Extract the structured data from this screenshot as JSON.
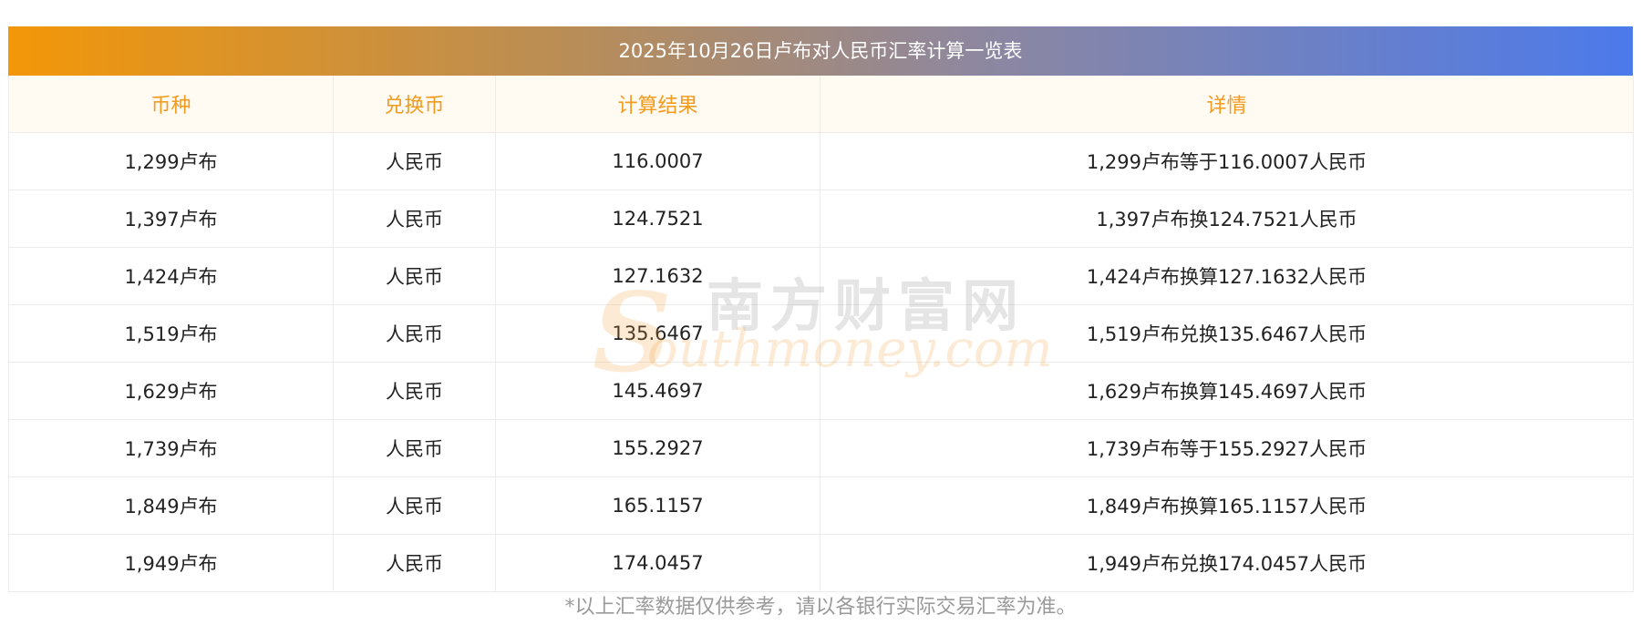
{
  "title": "2025年10月26日卢布对人民币汇率计算一览表",
  "headers": [
    "币种",
    "兑换币",
    "计算结果",
    "详情"
  ],
  "rows": [
    {
      "currency": "1,299卢布",
      "target": "人民币",
      "result": "116.0007",
      "detail": "1,299卢布等于116.0007人民币"
    },
    {
      "currency": "1,397卢布",
      "target": "人民币",
      "result": "124.7521",
      "detail": "1,397卢布换124.7521人民币"
    },
    {
      "currency": "1,424卢布",
      "target": "人民币",
      "result": "127.1632",
      "detail": "1,424卢布换算127.1632人民币"
    },
    {
      "currency": "1,519卢布",
      "target": "人民币",
      "result": "135.6467",
      "detail": "1,519卢布兑换135.6467人民币"
    },
    {
      "currency": "1,629卢布",
      "target": "人民币",
      "result": "145.4697",
      "detail": "1,629卢布换算145.4697人民币"
    },
    {
      "currency": "1,739卢布",
      "target": "人民币",
      "result": "155.2927",
      "detail": "1,739卢布等于155.2927人民币"
    },
    {
      "currency": "1,849卢布",
      "target": "人民币",
      "result": "165.1157",
      "detail": "1,849卢布换算165.1157人民币"
    },
    {
      "currency": "1,949卢布",
      "target": "人民币",
      "result": "174.0457",
      "detail": "1,949卢布兑换174.0457人民币"
    }
  ],
  "watermark": {
    "cn": "南方财富网",
    "en_s": "S",
    "en_rest": "outhmoney.com"
  },
  "footnote": "*以上汇率数据仅供参考，请以各银行实际交易汇率为准。",
  "colors": {
    "gradient_start": "#f39708",
    "gradient_end": "#4c7aeb",
    "header_text": "#f39b1e",
    "header_bg": "#fffaf2"
  }
}
